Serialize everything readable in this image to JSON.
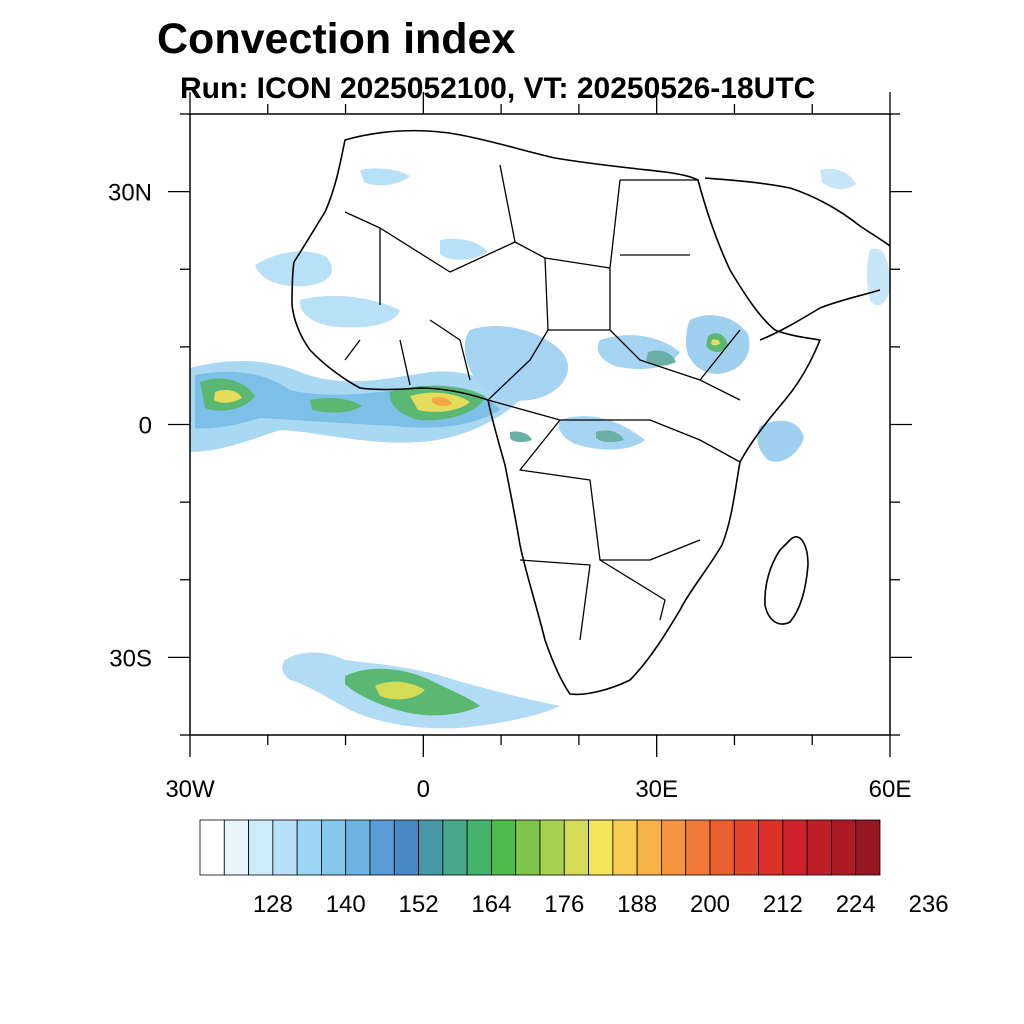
{
  "title": "Convection index",
  "subtitle": "Run: ICON 2025052100,  VT: 20250526-18UTC",
  "map": {
    "region": "Africa",
    "lon_range": [
      -30,
      60
    ],
    "lat_range": [
      -40,
      40
    ],
    "lat_labels": [
      {
        "lat": 30,
        "text": "30N"
      },
      {
        "lat": 0,
        "text": "0"
      },
      {
        "lat": -30,
        "text": "30S"
      }
    ],
    "lon_labels": [
      {
        "lon": -30,
        "text": "30W"
      },
      {
        "lon": 0,
        "text": "0"
      },
      {
        "lon": 30,
        "text": "30E"
      },
      {
        "lon": 60,
        "text": "60E"
      }
    ]
  },
  "colorbar": {
    "colors": [
      "#ffffff",
      "#e6f4fc",
      "#cfeaf9",
      "#b6e0f7",
      "#9dd5f5",
      "#85c6ec",
      "#6fb3e3",
      "#5a9cd6",
      "#4a8ac4",
      "#4898a8",
      "#47a88a",
      "#44b26a",
      "#4dba4c",
      "#7cc44c",
      "#a8d050",
      "#d4dc56",
      "#f4e658",
      "#f8cc52",
      "#f8b048",
      "#f49440",
      "#f07838",
      "#ea5e30",
      "#e4462c",
      "#dc3028",
      "#d0222a",
      "#c01e28",
      "#ac1a24",
      "#961820"
    ],
    "tick_labels": [
      "128",
      "140",
      "152",
      "164",
      "176",
      "188",
      "200",
      "212",
      "224",
      "236"
    ]
  }
}
